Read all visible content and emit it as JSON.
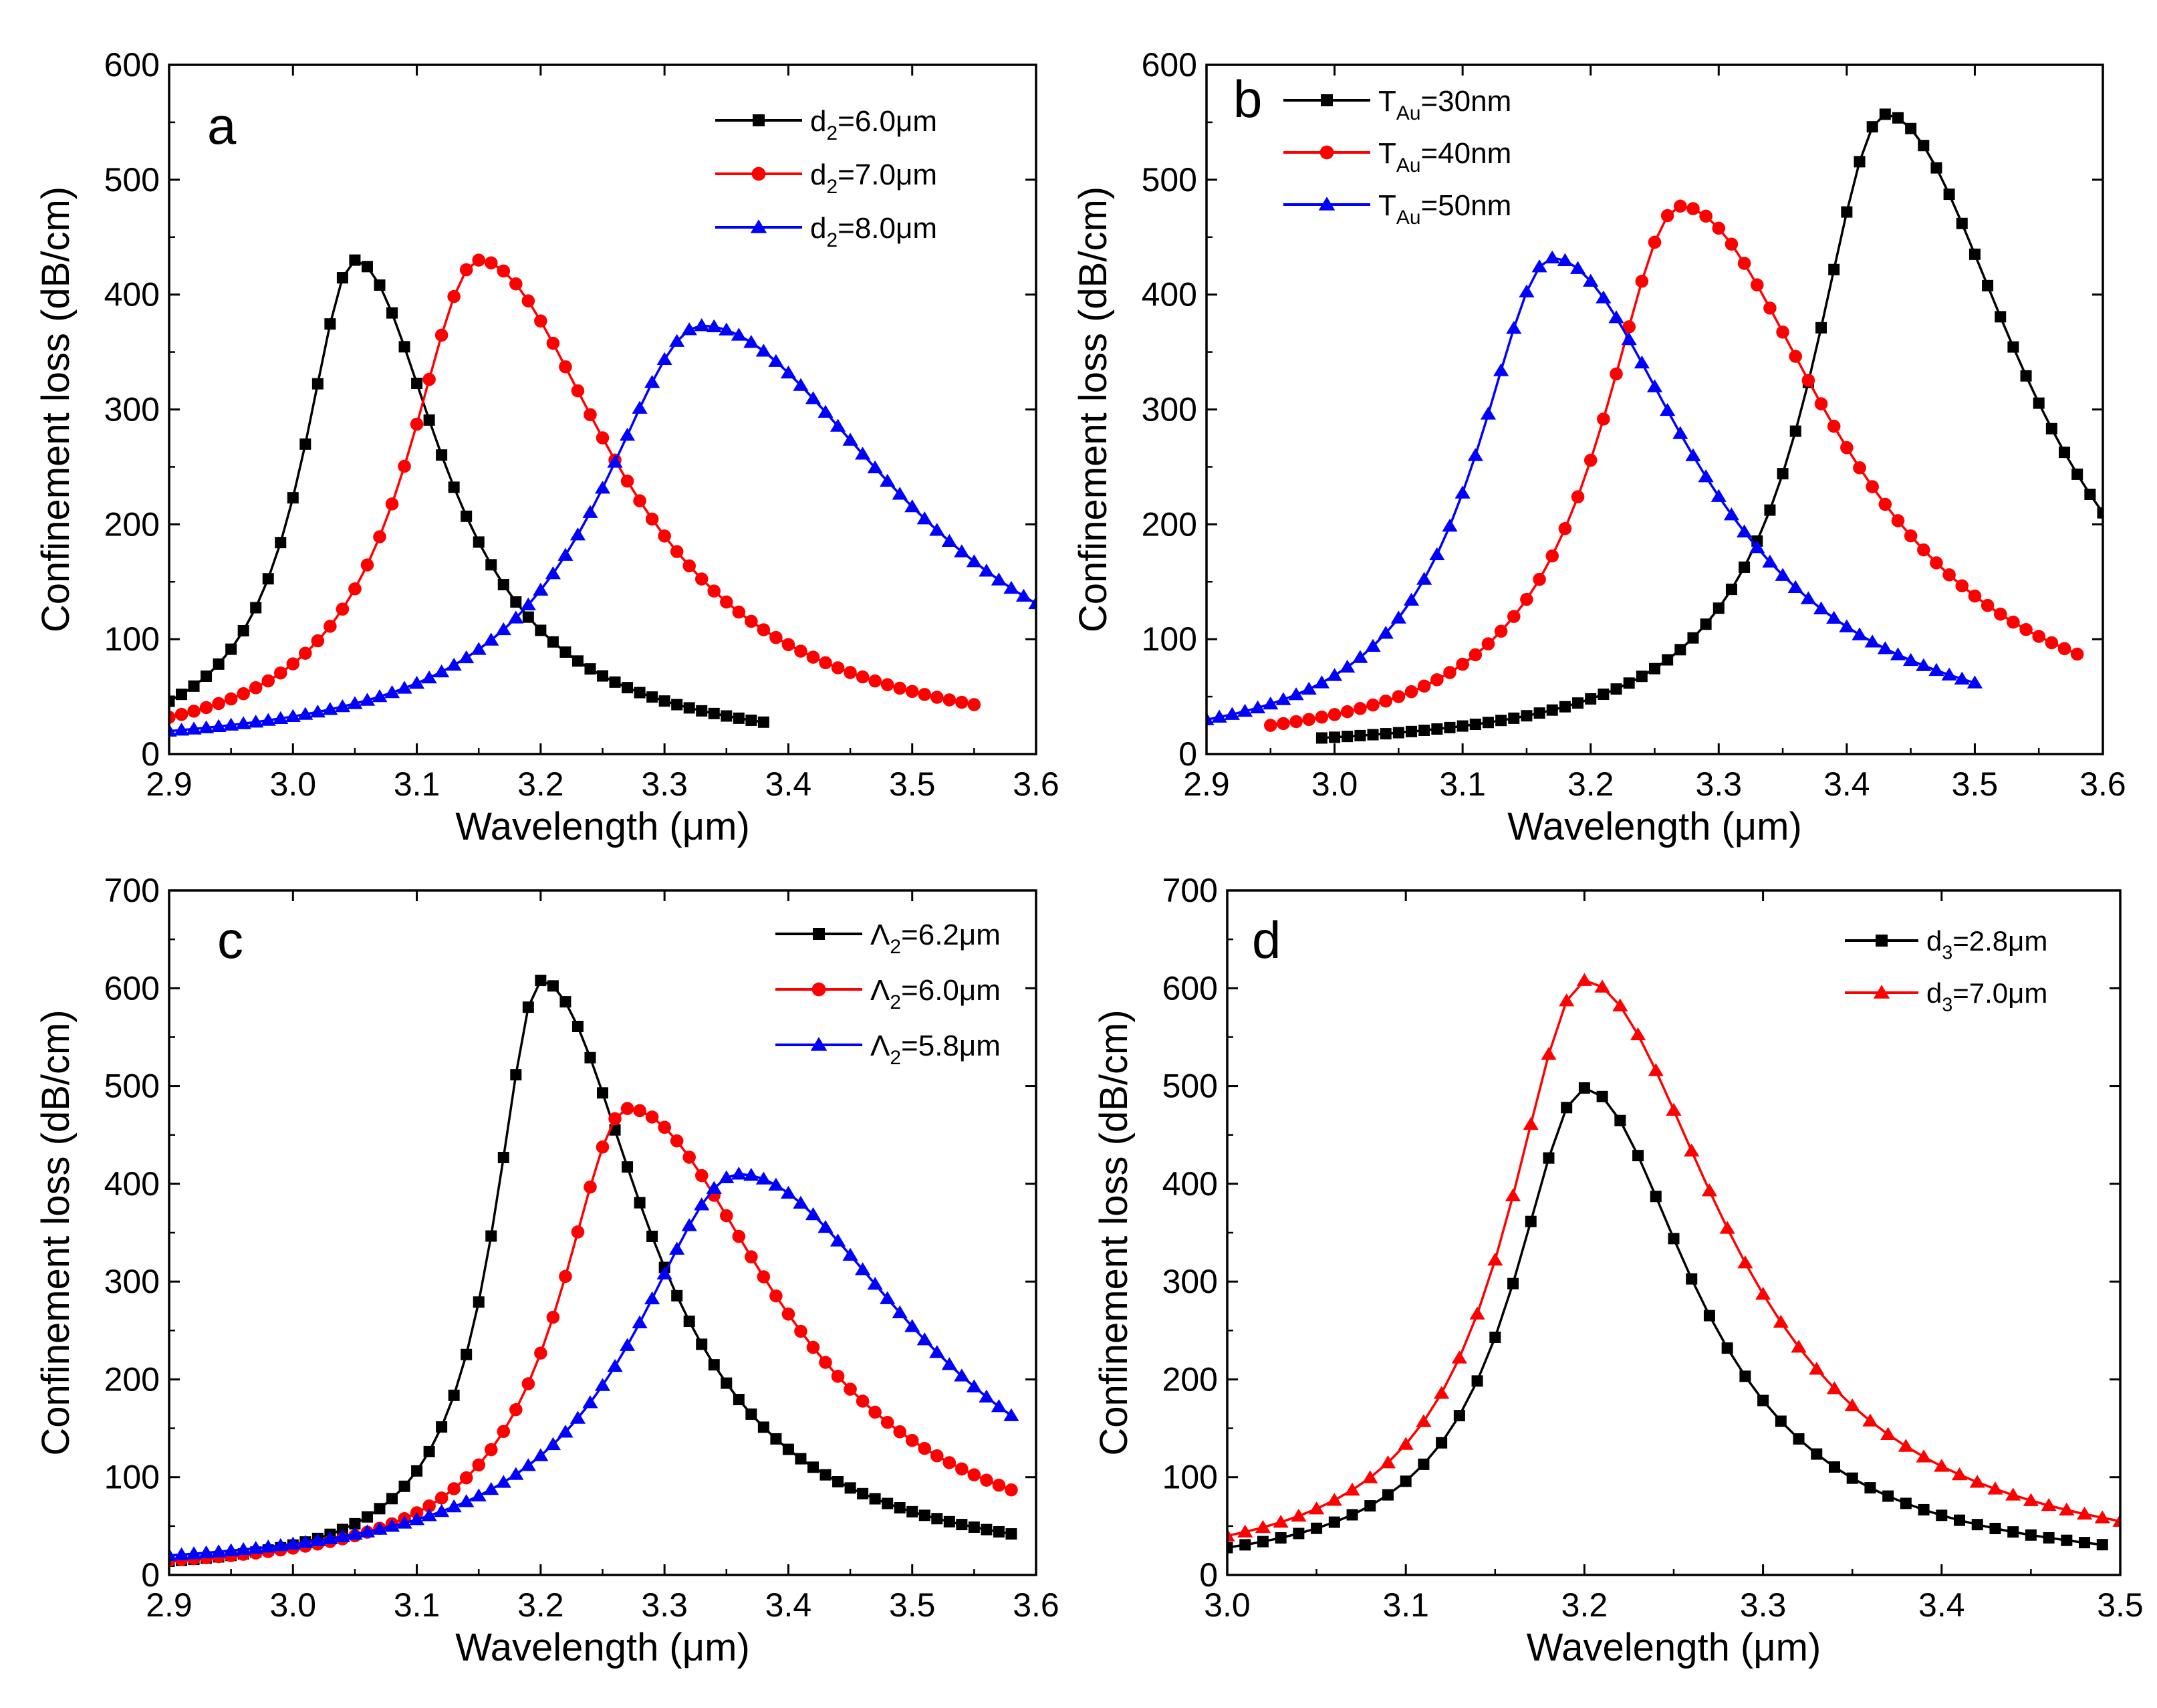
{
  "chart_data": [
    {
      "panel_label": "a",
      "type": "line",
      "xlabel": "Wavelength (μm)",
      "ylabel": "Confinement loss (dB/cm)",
      "xlim": [
        2.9,
        3.6
      ],
      "ylim": [
        0,
        600
      ],
      "xticks": [
        "2.9",
        "3.0",
        "3.1",
        "3.2",
        "3.3",
        "3.4",
        "3.5",
        "3.6"
      ],
      "yticks": [
        "0",
        "100",
        "200",
        "300",
        "400",
        "500",
        "600"
      ],
      "legend_position": "top-right",
      "series": [
        {
          "name": "d",
          "sub": "2",
          "rest": "=6.0μm",
          "color": "#000000",
          "marker": "square",
          "peak_x": 3.05,
          "peak_y": 430,
          "x_start": 2.9,
          "x_end": 3.385,
          "y_start": 46,
          "y_end": 27,
          "step": 0.01
        },
        {
          "name": "d",
          "sub": "2",
          "rest": "=7.0μm",
          "color": "#ff0000",
          "marker": "circle",
          "peak_x": 3.15,
          "peak_y": 430,
          "x_start": 2.9,
          "x_end": 3.545,
          "y_start": 32,
          "y_end": 44,
          "step": 0.01
        },
        {
          "name": "d",
          "sub": "2",
          "rest": "=8.0μm",
          "color": "#0000ff",
          "marker": "triangle",
          "peak_x": 3.33,
          "peak_y": 373,
          "x_start": 2.9,
          "x_end": 3.6,
          "y_start": 20,
          "y_end": 131,
          "step": 0.01
        }
      ]
    },
    {
      "panel_label": "b",
      "type": "line",
      "xlabel": "Wavelength (μm)",
      "ylabel": "Confinement loss (dB/cm)",
      "xlim": [
        2.9,
        3.6
      ],
      "ylim": [
        0,
        600
      ],
      "xticks": [
        "2.9",
        "3.0",
        "3.1",
        "3.2",
        "3.3",
        "3.4",
        "3.5",
        "3.6"
      ],
      "yticks": [
        "0",
        "100",
        "200",
        "300",
        "400",
        "500",
        "600"
      ],
      "legend_position": "top-left",
      "series": [
        {
          "name": "T",
          "sub": "Au",
          "rest": "=30nm",
          "color": "#000000",
          "marker": "square",
          "peak_x": 3.43,
          "peak_y": 557,
          "x_start": 2.99,
          "x_end": 3.6,
          "y_start": 14,
          "y_end": 210,
          "step": 0.01
        },
        {
          "name": "T",
          "sub": "Au",
          "rest": "=40nm",
          "color": "#ff0000",
          "marker": "circle",
          "peak_x": 3.27,
          "peak_y": 477,
          "x_start": 2.95,
          "x_end": 3.58,
          "y_start": 25,
          "y_end": 87,
          "step": 0.01
        },
        {
          "name": "T",
          "sub": "Au",
          "rest": "=50nm",
          "color": "#0000ff",
          "marker": "triangle",
          "peak_x": 3.17,
          "peak_y": 432,
          "x_start": 2.9,
          "x_end": 3.5,
          "y_start": 30,
          "y_end": 62,
          "step": 0.01
        }
      ]
    },
    {
      "panel_label": "c",
      "type": "line",
      "xlabel": "Wavelength (μm)",
      "ylabel": "Confinement loss (dB/cm)",
      "xlim": [
        2.9,
        3.6
      ],
      "ylim": [
        0,
        700
      ],
      "xticks": [
        "2.9",
        "3.0",
        "3.1",
        "3.2",
        "3.3",
        "3.4",
        "3.5",
        "3.6"
      ],
      "yticks": [
        "0",
        "100",
        "200",
        "300",
        "400",
        "500",
        "600",
        "700"
      ],
      "legend_position": "top-right",
      "series": [
        {
          "name": "Λ",
          "sub": "2",
          "rest": "=6.2μm",
          "color": "#000000",
          "marker": "square",
          "peak_x": 3.2,
          "peak_y": 608,
          "x_start": 2.9,
          "x_end": 3.58,
          "y_start": 14,
          "y_end": 42,
          "step": 0.01
        },
        {
          "name": "Λ",
          "sub": "2",
          "rest": "=6.0μm",
          "color": "#ff0000",
          "marker": "circle",
          "peak_x": 3.27,
          "peak_y": 477,
          "x_start": 2.9,
          "x_end": 3.58,
          "y_start": 15,
          "y_end": 87,
          "step": 0.01
        },
        {
          "name": "Λ",
          "sub": "2",
          "rest": "=5.8μm",
          "color": "#0000ff",
          "marker": "triangle",
          "peak_x": 3.36,
          "peak_y": 410,
          "x_start": 2.9,
          "x_end": 3.58,
          "y_start": 20,
          "y_end": 163,
          "step": 0.01
        }
      ]
    },
    {
      "panel_label": "d",
      "type": "line",
      "xlabel": "Wavelength (μm)",
      "ylabel": "Confinement loss (dB/cm)",
      "xlim": [
        3.0,
        3.5
      ],
      "ylim": [
        0,
        700
      ],
      "xticks": [
        "3.0",
        "3.1",
        "3.2",
        "3.3",
        "3.4",
        "3.5"
      ],
      "yticks": [
        "0",
        "100",
        "200",
        "300",
        "400",
        "500",
        "600",
        "700"
      ],
      "legend_position": "top-right",
      "series": [
        {
          "name": "d",
          "sub": "3",
          "rest": "=2.8μm",
          "color": "#000000",
          "marker": "square",
          "peak_x": 3.2,
          "peak_y": 498,
          "x_start": 3.0,
          "x_end": 3.49,
          "y_start": 28,
          "y_end": 31,
          "step": 0.01
        },
        {
          "name": "d",
          "sub": "3",
          "rest": "=7.0μm",
          "color": "#ff0000",
          "marker": "triangle",
          "peak_x": 3.2,
          "peak_y": 608,
          "x_start": 3.0,
          "x_end": 3.5,
          "y_start": 40,
          "y_end": 55,
          "step": 0.01
        }
      ]
    }
  ]
}
